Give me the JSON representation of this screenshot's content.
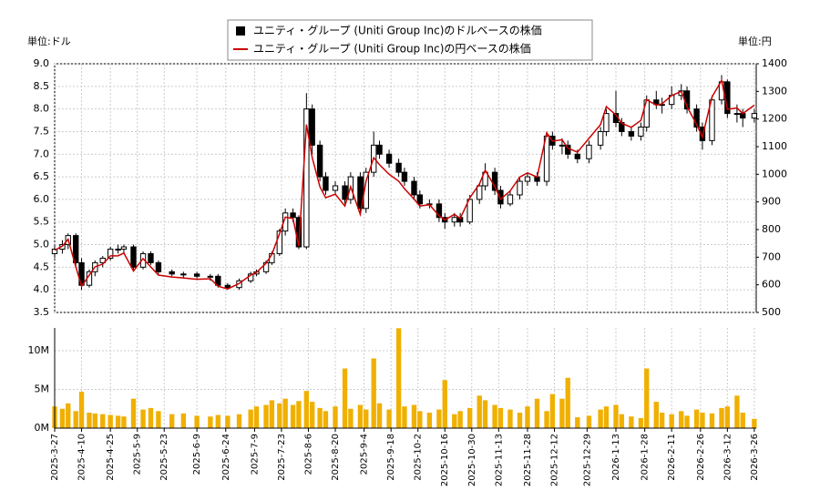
{
  "chart_data": {
    "type": "candlestick",
    "ylabel": "単位:ドル",
    "y2label": "単位:円",
    "x": [
      "2025-03-27",
      "2025-03-31",
      "2025-04-03",
      "2025-04-07",
      "2025-04-10",
      "2025-04-14",
      "2025-04-17",
      "2025-04-21",
      "2025-04-25",
      "2025-04-29",
      "2025-05-02",
      "2025-05-07",
      "2025-05-12",
      "2025-05-16",
      "2025-05-20",
      "2025-05-27",
      "2025-06-02",
      "2025-06-09",
      "2025-06-16",
      "2025-06-20",
      "2025-06-25",
      "2025-07-01",
      "2025-07-07",
      "2025-07-10",
      "2025-07-15",
      "2025-07-18",
      "2025-07-22",
      "2025-07-25",
      "2025-07-29",
      "2025-08-01",
      "2025-08-05",
      "2025-08-08",
      "2025-08-12",
      "2025-08-15",
      "2025-08-20",
      "2025-08-25",
      "2025-08-28",
      "2025-09-02",
      "2025-09-05",
      "2025-09-09",
      "2025-09-12",
      "2025-09-17",
      "2025-09-22",
      "2025-09-25",
      "2025-09-30",
      "2025-10-03",
      "2025-10-08",
      "2025-10-13",
      "2025-10-16",
      "2025-10-21",
      "2025-10-24",
      "2025-10-29",
      "2025-11-03",
      "2025-11-06",
      "2025-11-11",
      "2025-11-14",
      "2025-11-19",
      "2025-11-24",
      "2025-11-28",
      "2025-12-03",
      "2025-12-08",
      "2025-12-11",
      "2025-12-16",
      "2025-12-19",
      "2025-12-24",
      "2025-12-30",
      "2026-01-05",
      "2026-01-08",
      "2026-01-13",
      "2026-01-16",
      "2026-01-21",
      "2026-01-26",
      "2026-01-29",
      "2026-02-03",
      "2026-02-06",
      "2026-02-11",
      "2026-02-16",
      "2026-02-19",
      "2026-02-24",
      "2026-02-27",
      "2026-03-04",
      "2026-03-09",
      "2026-03-12",
      "2026-03-17",
      "2026-03-20",
      "2026-03-26"
    ],
    "series": [
      {
        "name": "ユニティ・グループ (Uniti Group Inc)のドルベースの株価",
        "color": "#000000",
        "open": [
          4.8,
          4.9,
          5.0,
          5.2,
          4.6,
          4.1,
          4.4,
          4.6,
          4.7,
          4.9,
          4.9,
          4.95,
          4.5,
          4.8,
          4.6,
          4.4,
          4.35,
          4.35,
          4.3,
          4.3,
          4.1,
          4.05,
          4.2,
          4.35,
          4.4,
          4.6,
          4.8,
          5.3,
          5.7,
          5.6,
          4.95,
          8.0,
          7.2,
          6.5,
          6.2,
          6.3,
          6.0,
          6.5,
          5.8,
          6.6,
          7.2,
          7.0,
          6.8,
          6.6,
          6.4,
          6.1,
          5.9,
          5.9,
          5.6,
          5.5,
          5.6,
          5.5,
          6.0,
          6.3,
          6.6,
          6.2,
          5.9,
          6.1,
          6.4,
          6.5,
          6.4,
          7.4,
          7.2,
          7.2,
          7.0,
          6.9,
          7.2,
          7.5,
          7.9,
          7.7,
          7.5,
          7.4,
          7.6,
          8.2,
          8.1,
          8.1,
          8.3,
          8.4,
          8.0,
          7.6,
          7.3,
          8.2,
          8.6,
          7.9,
          7.9,
          7.8
        ],
        "high": [
          5.0,
          5.1,
          5.25,
          5.25,
          4.7,
          4.45,
          4.65,
          4.75,
          4.95,
          5.0,
          5.0,
          5.0,
          4.85,
          4.85,
          4.65,
          4.45,
          4.4,
          4.4,
          4.35,
          4.35,
          4.15,
          4.25,
          4.4,
          4.45,
          4.65,
          4.85,
          5.35,
          5.8,
          5.8,
          5.65,
          8.35,
          8.1,
          7.3,
          6.6,
          6.4,
          6.4,
          6.6,
          6.6,
          6.7,
          7.5,
          7.3,
          7.1,
          6.9,
          6.7,
          6.5,
          6.2,
          6.0,
          6.0,
          5.7,
          5.7,
          5.7,
          6.1,
          6.35,
          6.8,
          6.7,
          6.3,
          6.2,
          6.5,
          6.6,
          6.6,
          7.5,
          7.5,
          7.35,
          7.3,
          7.1,
          7.3,
          7.6,
          8.0,
          8.4,
          7.8,
          7.6,
          7.7,
          8.3,
          8.4,
          8.25,
          8.5,
          8.55,
          8.5,
          8.1,
          7.7,
          8.3,
          8.75,
          8.65,
          8.1,
          8.0,
          8.0
        ],
        "low": [
          4.7,
          4.8,
          4.9,
          4.5,
          4.0,
          4.05,
          4.3,
          4.5,
          4.65,
          4.8,
          4.8,
          4.4,
          4.45,
          4.55,
          4.35,
          4.3,
          4.25,
          4.25,
          4.2,
          4.05,
          4.0,
          4.0,
          4.15,
          4.3,
          4.35,
          4.55,
          4.75,
          5.2,
          5.5,
          4.9,
          4.9,
          7.0,
          6.4,
          6.1,
          6.1,
          5.9,
          5.9,
          5.7,
          5.7,
          6.5,
          6.9,
          6.7,
          6.5,
          6.3,
          6.0,
          5.8,
          5.8,
          5.5,
          5.35,
          5.4,
          5.4,
          5.45,
          5.9,
          6.2,
          6.1,
          5.8,
          5.85,
          6.0,
          6.3,
          6.3,
          6.3,
          7.1,
          7.0,
          6.9,
          6.8,
          6.8,
          7.1,
          7.4,
          7.6,
          7.4,
          7.3,
          7.3,
          7.5,
          8.0,
          7.9,
          8.0,
          8.2,
          7.9,
          7.5,
          7.1,
          7.2,
          8.1,
          7.8,
          7.7,
          7.6,
          7.7
        ],
        "close": [
          4.9,
          5.0,
          5.2,
          4.6,
          4.1,
          4.4,
          4.6,
          4.7,
          4.9,
          4.9,
          4.95,
          4.5,
          4.8,
          4.6,
          4.4,
          4.35,
          4.35,
          4.3,
          4.3,
          4.1,
          4.05,
          4.2,
          4.35,
          4.4,
          4.6,
          4.8,
          5.3,
          5.7,
          5.6,
          4.95,
          8.0,
          7.2,
          6.5,
          6.2,
          6.3,
          6.0,
          6.5,
          5.8,
          6.6,
          7.2,
          7.0,
          6.8,
          6.6,
          6.4,
          6.1,
          5.9,
          5.9,
          5.6,
          5.5,
          5.6,
          5.5,
          6.0,
          6.3,
          6.6,
          6.2,
          5.9,
          6.1,
          6.4,
          6.5,
          6.4,
          7.4,
          7.2,
          7.2,
          7.0,
          6.9,
          7.2,
          7.5,
          7.9,
          7.7,
          7.5,
          7.4,
          7.6,
          8.2,
          8.1,
          8.1,
          8.3,
          8.4,
          8.0,
          7.6,
          7.3,
          8.2,
          8.6,
          7.9,
          7.9,
          7.8,
          7.9
        ]
      },
      {
        "name": "ユニティ・グループ (Uniti Group Inc)の円ベースの株価",
        "color": "#cc0000",
        "axis": "y2",
        "values": [
          725,
          740,
          765,
          665,
          595,
          635,
          665,
          675,
          705,
          705,
          715,
          650,
          695,
          665,
          635,
          628,
          625,
          620,
          622,
          595,
          585,
          605,
          635,
          645,
          678,
          710,
          785,
          845,
          840,
          740,
          1180,
          1060,
          955,
          915,
          928,
          885,
          955,
          855,
          975,
          1060,
          1035,
          1000,
          975,
          948,
          910,
          885,
          890,
          850,
          835,
          855,
          840,
          915,
          965,
          1015,
          955,
          910,
          940,
          990,
          1005,
          990,
          1150,
          1120,
          1125,
          1095,
          1080,
          1130,
          1180,
          1245,
          1215,
          1185,
          1170,
          1195,
          1270,
          1250,
          1255,
          1285,
          1300,
          1245,
          1180,
          1135,
          1280,
          1340,
          1235,
          1240,
          1220,
          1250
        ]
      }
    ],
    "volume": {
      "color": "#f0b000",
      "ylim": [
        0,
        12940000
      ],
      "yticks": [
        {
          "value": 0,
          "label": "0M"
        },
        {
          "value": 5000000,
          "label": "5M"
        },
        {
          "value": 10000000,
          "label": "10M"
        }
      ],
      "values": [
        2800000,
        2500000,
        3200000,
        2200000,
        4700000,
        2000000,
        1900000,
        1800000,
        1700000,
        1600000,
        1500000,
        3800000,
        2400000,
        2600000,
        2200000,
        1800000,
        1900000,
        1600000,
        1500000,
        1700000,
        1600000,
        1800000,
        2400000,
        2800000,
        3000000,
        3600000,
        3200000,
        3800000,
        3000000,
        3500000,
        4800000,
        3400000,
        2600000,
        2200000,
        2800000,
        7700000,
        2500000,
        3000000,
        2400000,
        9000000,
        3200000,
        2400000,
        12900000,
        2800000,
        3000000,
        2200000,
        2000000,
        2400000,
        6200000,
        1800000,
        2200000,
        2600000,
        4200000,
        3600000,
        3000000,
        2600000,
        2400000,
        2000000,
        2800000,
        3800000,
        2200000,
        4400000,
        3800000,
        6500000,
        1400000,
        1600000,
        2400000,
        2800000,
        3000000,
        1800000,
        1500000,
        1300000,
        7700000,
        3400000,
        2000000,
        1800000,
        2200000,
        1600000,
        2400000,
        2000000,
        1900000,
        2600000,
        2800000,
        4200000,
        2000000,
        1200000
      ]
    },
    "xlim": [
      "2025-03-27",
      "2026-03-27"
    ],
    "xticks": [
      "2025-3-27",
      "2025-4-10",
      "2025-4-25",
      "2025-5-9",
      "2025-5-23",
      "2025-6-9",
      "2025-6-24",
      "2025-7-9",
      "2025-7-23",
      "2025-8-6",
      "2025-8-20",
      "2025-9-4",
      "2025-9-18",
      "2025-10-2",
      "2025-10-16",
      "2025-10-30",
      "2025-11-13",
      "2025-11-28",
      "2025-12-12",
      "2025-12-29",
      "2026-1-13",
      "2026-1-28",
      "2026-2-11",
      "2026-2-26",
      "2026-3-12",
      "2026-3-26"
    ],
    "ylim": [
      3.5,
      9.0
    ],
    "yticks": [
      3.5,
      {
        "value": 4,
        "label": "4.0"
      },
      4.5,
      {
        "value": 5,
        "label": "5.0"
      },
      5.5,
      {
        "value": 6,
        "label": "6.0"
      },
      6.5,
      {
        "value": 7,
        "label": "7.0"
      },
      7.5,
      {
        "value": 8,
        "label": "8.0"
      },
      8.5,
      {
        "value": 9,
        "label": "9.0"
      }
    ],
    "y2lim": [
      500,
      1400
    ],
    "y2ticks": [
      500,
      600,
      700,
      800,
      900,
      1000,
      1100,
      1200,
      1300,
      1400
    ],
    "grid": true,
    "legend": "top"
  }
}
